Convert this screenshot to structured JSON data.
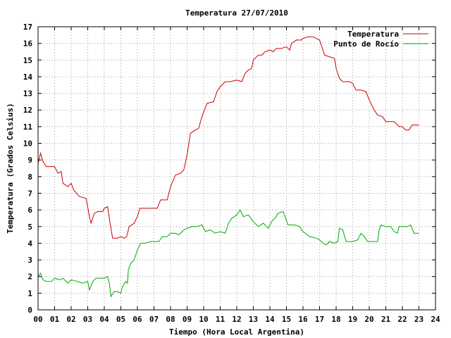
{
  "chart_data": {
    "type": "line",
    "title": "Temperatura 27/07/2010",
    "xlabel": "Tiempo (Hora Local Argentina)",
    "ylabel": "Temperatura (Grados Celsius)",
    "xlim": [
      0,
      24
    ],
    "ylim": [
      0,
      17
    ],
    "x_ticks": [
      "00",
      "01",
      "02",
      "03",
      "04",
      "05",
      "06",
      "07",
      "08",
      "09",
      "10",
      "11",
      "12",
      "13",
      "14",
      "15",
      "16",
      "17",
      "18",
      "19",
      "20",
      "21",
      "22",
      "23",
      "24"
    ],
    "y_ticks": [
      "0",
      "1",
      "2",
      "3",
      "4",
      "5",
      "6",
      "7",
      "8",
      "9",
      "10",
      "11",
      "12",
      "13",
      "14",
      "15",
      "16",
      "17"
    ],
    "grid": true,
    "legend_position": "top-right",
    "series": [
      {
        "name": "Temperatura",
        "color": "#cc0000",
        "points": [
          [
            0.0,
            8.8
          ],
          [
            0.15,
            9.4
          ],
          [
            0.3,
            8.9
          ],
          [
            0.5,
            8.6
          ],
          [
            0.7,
            8.6
          ],
          [
            1.0,
            8.6
          ],
          [
            1.2,
            8.2
          ],
          [
            1.4,
            8.3
          ],
          [
            1.5,
            7.6
          ],
          [
            1.8,
            7.4
          ],
          [
            2.0,
            7.6
          ],
          [
            2.15,
            7.2
          ],
          [
            2.5,
            6.8
          ],
          [
            2.9,
            6.7
          ],
          [
            3.1,
            5.6
          ],
          [
            3.2,
            5.2
          ],
          [
            3.4,
            5.8
          ],
          [
            3.6,
            5.9
          ],
          [
            3.9,
            5.9
          ],
          [
            4.0,
            6.1
          ],
          [
            4.2,
            6.2
          ],
          [
            4.35,
            5.2
          ],
          [
            4.5,
            4.3
          ],
          [
            4.8,
            4.3
          ],
          [
            5.0,
            4.4
          ],
          [
            5.2,
            4.3
          ],
          [
            5.35,
            4.4
          ],
          [
            5.5,
            5.0
          ],
          [
            5.8,
            5.2
          ],
          [
            6.0,
            5.6
          ],
          [
            6.15,
            6.1
          ],
          [
            6.5,
            6.1
          ],
          [
            7.0,
            6.1
          ],
          [
            7.2,
            6.1
          ],
          [
            7.4,
            6.6
          ],
          [
            7.8,
            6.6
          ],
          [
            8.0,
            7.4
          ],
          [
            8.3,
            8.1
          ],
          [
            8.6,
            8.2
          ],
          [
            8.8,
            8.4
          ],
          [
            9.0,
            9.3
          ],
          [
            9.2,
            10.6
          ],
          [
            9.5,
            10.8
          ],
          [
            9.7,
            10.9
          ],
          [
            9.9,
            11.6
          ],
          [
            10.2,
            12.4
          ],
          [
            10.6,
            12.5
          ],
          [
            10.8,
            13.1
          ],
          [
            11.0,
            13.4
          ],
          [
            11.3,
            13.7
          ],
          [
            11.6,
            13.7
          ],
          [
            12.0,
            13.8
          ],
          [
            12.3,
            13.7
          ],
          [
            12.5,
            14.2
          ],
          [
            12.7,
            14.4
          ],
          [
            12.9,
            14.5
          ],
          [
            13.0,
            15.0
          ],
          [
            13.3,
            15.3
          ],
          [
            13.5,
            15.3
          ],
          [
            13.7,
            15.5
          ],
          [
            14.0,
            15.6
          ],
          [
            14.2,
            15.5
          ],
          [
            14.4,
            15.7
          ],
          [
            14.7,
            15.7
          ],
          [
            15.0,
            15.8
          ],
          [
            15.2,
            15.6
          ],
          [
            15.3,
            16.0
          ],
          [
            15.6,
            16.2
          ],
          [
            15.9,
            16.2
          ],
          [
            16.0,
            16.3
          ],
          [
            16.3,
            16.4
          ],
          [
            16.6,
            16.4
          ],
          [
            17.0,
            16.2
          ],
          [
            17.3,
            15.3
          ],
          [
            17.6,
            15.2
          ],
          [
            17.9,
            15.1
          ],
          [
            18.0,
            14.5
          ],
          [
            18.2,
            13.9
          ],
          [
            18.4,
            13.7
          ],
          [
            18.8,
            13.7
          ],
          [
            19.0,
            13.6
          ],
          [
            19.2,
            13.2
          ],
          [
            19.5,
            13.2
          ],
          [
            19.8,
            13.1
          ],
          [
            20.0,
            12.6
          ],
          [
            20.3,
            12.0
          ],
          [
            20.5,
            11.7
          ],
          [
            20.8,
            11.6
          ],
          [
            21.0,
            11.3
          ],
          [
            21.5,
            11.3
          ],
          [
            21.8,
            11.0
          ],
          [
            22.0,
            11.0
          ],
          [
            22.2,
            10.8
          ],
          [
            22.4,
            10.8
          ],
          [
            22.6,
            11.1
          ],
          [
            23.0,
            11.1
          ]
        ]
      },
      {
        "name": "Punto de Rocío",
        "color": "#00aa00",
        "points": [
          [
            0.0,
            2.0
          ],
          [
            0.15,
            2.2
          ],
          [
            0.3,
            1.8
          ],
          [
            0.5,
            1.7
          ],
          [
            0.8,
            1.7
          ],
          [
            1.0,
            1.9
          ],
          [
            1.3,
            1.8
          ],
          [
            1.5,
            1.9
          ],
          [
            1.8,
            1.6
          ],
          [
            2.0,
            1.8
          ],
          [
            2.4,
            1.7
          ],
          [
            2.7,
            1.6
          ],
          [
            3.0,
            1.7
          ],
          [
            3.1,
            1.2
          ],
          [
            3.3,
            1.7
          ],
          [
            3.5,
            1.9
          ],
          [
            3.8,
            1.9
          ],
          [
            4.0,
            1.9
          ],
          [
            4.2,
            2.0
          ],
          [
            4.3,
            1.6
          ],
          [
            4.4,
            0.8
          ],
          [
            4.6,
            1.1
          ],
          [
            4.8,
            1.1
          ],
          [
            5.0,
            1.0
          ],
          [
            5.1,
            1.4
          ],
          [
            5.3,
            1.7
          ],
          [
            5.4,
            1.6
          ],
          [
            5.45,
            2.4
          ],
          [
            5.6,
            2.8
          ],
          [
            5.8,
            3.0
          ],
          [
            6.0,
            3.6
          ],
          [
            6.2,
            4.0
          ],
          [
            6.5,
            4.0
          ],
          [
            6.8,
            4.1
          ],
          [
            7.0,
            4.1
          ],
          [
            7.3,
            4.1
          ],
          [
            7.5,
            4.4
          ],
          [
            7.8,
            4.4
          ],
          [
            8.0,
            4.6
          ],
          [
            8.3,
            4.6
          ],
          [
            8.5,
            4.5
          ],
          [
            8.8,
            4.8
          ],
          [
            9.0,
            4.9
          ],
          [
            9.3,
            5.0
          ],
          [
            9.6,
            5.0
          ],
          [
            9.9,
            5.1
          ],
          [
            10.1,
            4.7
          ],
          [
            10.4,
            4.8
          ],
          [
            10.7,
            4.6
          ],
          [
            11.0,
            4.7
          ],
          [
            11.3,
            4.6
          ],
          [
            11.5,
            5.2
          ],
          [
            11.7,
            5.5
          ],
          [
            12.0,
            5.7
          ],
          [
            12.2,
            6.0
          ],
          [
            12.4,
            5.6
          ],
          [
            12.7,
            5.7
          ],
          [
            13.0,
            5.3
          ],
          [
            13.3,
            5.0
          ],
          [
            13.6,
            5.2
          ],
          [
            13.9,
            4.9
          ],
          [
            14.1,
            5.3
          ],
          [
            14.3,
            5.5
          ],
          [
            14.5,
            5.8
          ],
          [
            14.8,
            5.9
          ],
          [
            15.1,
            5.1
          ],
          [
            15.5,
            5.1
          ],
          [
            15.8,
            5.0
          ],
          [
            16.0,
            4.7
          ],
          [
            16.4,
            4.4
          ],
          [
            16.8,
            4.3
          ],
          [
            17.0,
            4.2
          ],
          [
            17.2,
            4.0
          ],
          [
            17.4,
            3.9
          ],
          [
            17.6,
            4.1
          ],
          [
            17.9,
            4.0
          ],
          [
            18.1,
            4.1
          ],
          [
            18.2,
            4.9
          ],
          [
            18.4,
            4.8
          ],
          [
            18.6,
            4.1
          ],
          [
            19.0,
            4.1
          ],
          [
            19.3,
            4.2
          ],
          [
            19.5,
            4.6
          ],
          [
            19.7,
            4.4
          ],
          [
            19.9,
            4.1
          ],
          [
            20.2,
            4.1
          ],
          [
            20.5,
            4.1
          ],
          [
            20.6,
            4.8
          ],
          [
            20.7,
            5.1
          ],
          [
            21.0,
            5.0
          ],
          [
            21.3,
            5.0
          ],
          [
            21.5,
            4.7
          ],
          [
            21.7,
            4.6
          ],
          [
            21.8,
            5.0
          ],
          [
            22.0,
            5.0
          ],
          [
            22.3,
            5.0
          ],
          [
            22.5,
            5.1
          ],
          [
            22.7,
            4.6
          ],
          [
            23.0,
            4.6
          ]
        ]
      }
    ]
  }
}
